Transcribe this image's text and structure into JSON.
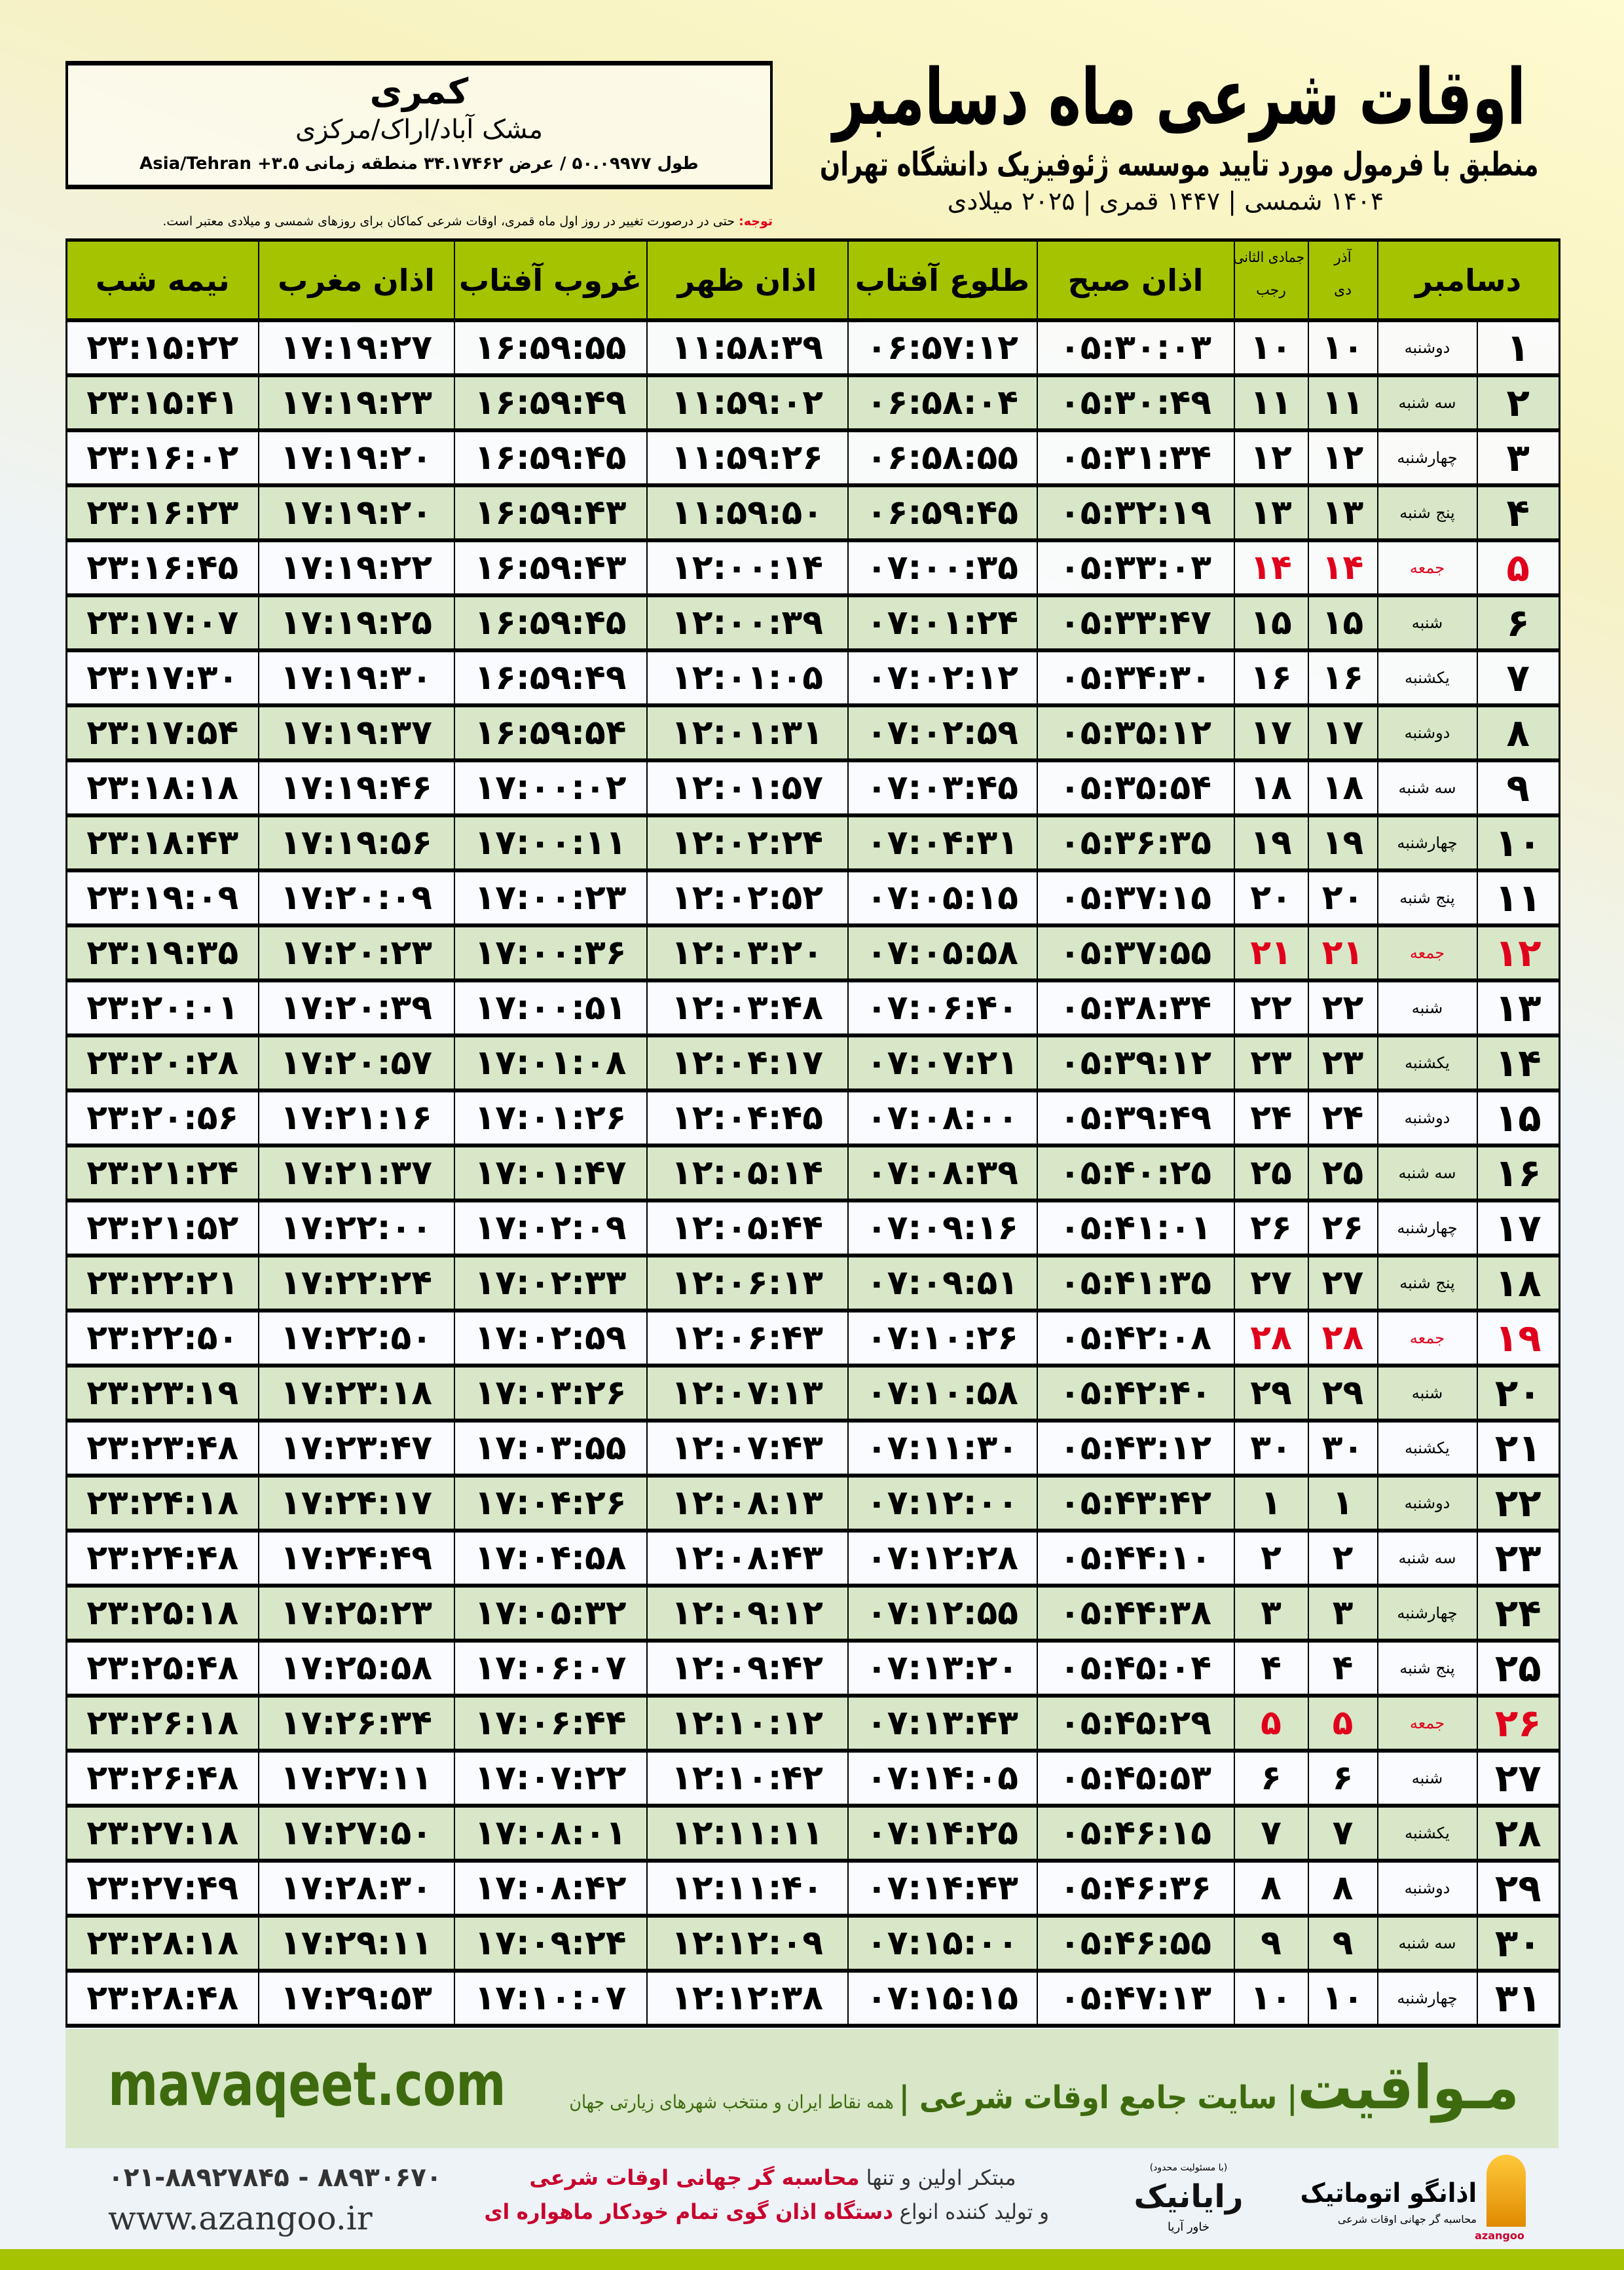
{
  "header": {
    "title": "اوقات شرعی ماه دسامبر",
    "subtitle": "منطبق با فرمول مورد تایید موسسه ژئوفیزیک دانشگاه تهران",
    "dateline": "۱۴۰۴ شمسی | ۱۴۴۷ قمری | ۲۰۲۵ میلادی"
  },
  "location": {
    "city": "کمری",
    "region": "مشک آباد/اراک/مرکزی",
    "coords": "طول ۵۰.۰۹۹۷۷ / عرض ۳۴.۱۷۴۶۲ منطقه زمانی ۳.۵+ Asia/Tehran"
  },
  "note": {
    "label": "توجه:",
    "text": " حتی در درصورت تغییر در روز اول ماه قمری، اوقات شرعی کماکان برای روزهای شمسی و میلادی معتبر است."
  },
  "table": {
    "columns": {
      "day": "دسامبر",
      "dey_top": "آذر",
      "dey": "دی",
      "rajab_top": "جمادی الثانی",
      "rajab": "رجب",
      "sobh": "اذان صبح",
      "tolu": "طلوع آفتاب",
      "zohr": "اذان ظهر",
      "ghoroob": "غروب آفتاب",
      "maghreb": "اذان مغرب",
      "nimeh": "نیمه شب"
    },
    "holiday_color": "#e0001b",
    "rows": [
      [
        "۱",
        "دوشنبه",
        "۱۰",
        "۱۰",
        "۰۵:۳۰:۰۳",
        "۰۶:۵۷:۱۲",
        "۱۱:۵۸:۳۹",
        "۱۶:۵۹:۵۵",
        "۱۷:۱۹:۲۷",
        "۲۳:۱۵:۲۲"
      ],
      [
        "۲",
        "سه شنبه",
        "۱۱",
        "۱۱",
        "۰۵:۳۰:۴۹",
        "۰۶:۵۸:۰۴",
        "۱۱:۵۹:۰۲",
        "۱۶:۵۹:۴۹",
        "۱۷:۱۹:۲۳",
        "۲۳:۱۵:۴۱"
      ],
      [
        "۳",
        "چهارشنبه",
        "۱۲",
        "۱۲",
        "۰۵:۳۱:۳۴",
        "۰۶:۵۸:۵۵",
        "۱۱:۵۹:۲۶",
        "۱۶:۵۹:۴۵",
        "۱۷:۱۹:۲۰",
        "۲۳:۱۶:۰۲"
      ],
      [
        "۴",
        "پنج شنبه",
        "۱۳",
        "۱۳",
        "۰۵:۳۲:۱۹",
        "۰۶:۵۹:۴۵",
        "۱۱:۵۹:۵۰",
        "۱۶:۵۹:۴۳",
        "۱۷:۱۹:۲۰",
        "۲۳:۱۶:۲۳"
      ],
      [
        "۵",
        "جمعه",
        "۱۴",
        "۱۴",
        "۰۵:۳۳:۰۳",
        "۰۷:۰۰:۳۵",
        "۱۲:۰۰:۱۴",
        "۱۶:۵۹:۴۳",
        "۱۷:۱۹:۲۲",
        "۲۳:۱۶:۴۵"
      ],
      [
        "۶",
        "شنبه",
        "۱۵",
        "۱۵",
        "۰۵:۳۳:۴۷",
        "۰۷:۰۱:۲۴",
        "۱۲:۰۰:۳۹",
        "۱۶:۵۹:۴۵",
        "۱۷:۱۹:۲۵",
        "۲۳:۱۷:۰۷"
      ],
      [
        "۷",
        "یکشنبه",
        "۱۶",
        "۱۶",
        "۰۵:۳۴:۳۰",
        "۰۷:۰۲:۱۲",
        "۱۲:۰۱:۰۵",
        "۱۶:۵۹:۴۹",
        "۱۷:۱۹:۳۰",
        "۲۳:۱۷:۳۰"
      ],
      [
        "۸",
        "دوشنبه",
        "۱۷",
        "۱۷",
        "۰۵:۳۵:۱۲",
        "۰۷:۰۲:۵۹",
        "۱۲:۰۱:۳۱",
        "۱۶:۵۹:۵۴",
        "۱۷:۱۹:۳۷",
        "۲۳:۱۷:۵۴"
      ],
      [
        "۹",
        "سه شنبه",
        "۱۸",
        "۱۸",
        "۰۵:۳۵:۵۴",
        "۰۷:۰۳:۴۵",
        "۱۲:۰۱:۵۷",
        "۱۷:۰۰:۰۲",
        "۱۷:۱۹:۴۶",
        "۲۳:۱۸:۱۸"
      ],
      [
        "۱۰",
        "چهارشنبه",
        "۱۹",
        "۱۹",
        "۰۵:۳۶:۳۵",
        "۰۷:۰۴:۳۱",
        "۱۲:۰۲:۲۴",
        "۱۷:۰۰:۱۱",
        "۱۷:۱۹:۵۶",
        "۲۳:۱۸:۴۳"
      ],
      [
        "۱۱",
        "پنج شنبه",
        "۲۰",
        "۲۰",
        "۰۵:۳۷:۱۵",
        "۰۷:۰۵:۱۵",
        "۱۲:۰۲:۵۲",
        "۱۷:۰۰:۲۳",
        "۱۷:۲۰:۰۹",
        "۲۳:۱۹:۰۹"
      ],
      [
        "۱۲",
        "جمعه",
        "۲۱",
        "۲۱",
        "۰۵:۳۷:۵۵",
        "۰۷:۰۵:۵۸",
        "۱۲:۰۳:۲۰",
        "۱۷:۰۰:۳۶",
        "۱۷:۲۰:۲۳",
        "۲۳:۱۹:۳۵"
      ],
      [
        "۱۳",
        "شنبه",
        "۲۲",
        "۲۲",
        "۰۵:۳۸:۳۴",
        "۰۷:۰۶:۴۰",
        "۱۲:۰۳:۴۸",
        "۱۷:۰۰:۵۱",
        "۱۷:۲۰:۳۹",
        "۲۳:۲۰:۰۱"
      ],
      [
        "۱۴",
        "یکشنبه",
        "۲۳",
        "۲۳",
        "۰۵:۳۹:۱۲",
        "۰۷:۰۷:۲۱",
        "۱۲:۰۴:۱۷",
        "۱۷:۰۱:۰۸",
        "۱۷:۲۰:۵۷",
        "۲۳:۲۰:۲۸"
      ],
      [
        "۱۵",
        "دوشنبه",
        "۲۴",
        "۲۴",
        "۰۵:۳۹:۴۹",
        "۰۷:۰۸:۰۰",
        "۱۲:۰۴:۴۵",
        "۱۷:۰۱:۲۶",
        "۱۷:۲۱:۱۶",
        "۲۳:۲۰:۵۶"
      ],
      [
        "۱۶",
        "سه شنبه",
        "۲۵",
        "۲۵",
        "۰۵:۴۰:۲۵",
        "۰۷:۰۸:۳۹",
        "۱۲:۰۵:۱۴",
        "۱۷:۰۱:۴۷",
        "۱۷:۲۱:۳۷",
        "۲۳:۲۱:۲۴"
      ],
      [
        "۱۷",
        "چهارشنبه",
        "۲۶",
        "۲۶",
        "۰۵:۴۱:۰۱",
        "۰۷:۰۹:۱۶",
        "۱۲:۰۵:۴۴",
        "۱۷:۰۲:۰۹",
        "۱۷:۲۲:۰۰",
        "۲۳:۲۱:۵۲"
      ],
      [
        "۱۸",
        "پنج شنبه",
        "۲۷",
        "۲۷",
        "۰۵:۴۱:۳۵",
        "۰۷:۰۹:۵۱",
        "۱۲:۰۶:۱۳",
        "۱۷:۰۲:۳۳",
        "۱۷:۲۲:۲۴",
        "۲۳:۲۲:۲۱"
      ],
      [
        "۱۹",
        "جمعه",
        "۲۸",
        "۲۸",
        "۰۵:۴۲:۰۸",
        "۰۷:۱۰:۲۶",
        "۱۲:۰۶:۴۳",
        "۱۷:۰۲:۵۹",
        "۱۷:۲۲:۵۰",
        "۲۳:۲۲:۵۰"
      ],
      [
        "۲۰",
        "شنبه",
        "۲۹",
        "۲۹",
        "۰۵:۴۲:۴۰",
        "۰۷:۱۰:۵۸",
        "۱۲:۰۷:۱۳",
        "۱۷:۰۳:۲۶",
        "۱۷:۲۳:۱۸",
        "۲۳:۲۳:۱۹"
      ],
      [
        "۲۱",
        "یکشنبه",
        "۳۰",
        "۳۰",
        "۰۵:۴۳:۱۲",
        "۰۷:۱۱:۳۰",
        "۱۲:۰۷:۴۳",
        "۱۷:۰۳:۵۵",
        "۱۷:۲۳:۴۷",
        "۲۳:۲۳:۴۸"
      ],
      [
        "۲۲",
        "دوشنبه",
        "۱",
        "۱",
        "۰۵:۴۳:۴۲",
        "۰۷:۱۲:۰۰",
        "۱۲:۰۸:۱۳",
        "۱۷:۰۴:۲۶",
        "۱۷:۲۴:۱۷",
        "۲۳:۲۴:۱۸"
      ],
      [
        "۲۳",
        "سه شنبه",
        "۲",
        "۲",
        "۰۵:۴۴:۱۰",
        "۰۷:۱۲:۲۸",
        "۱۲:۰۸:۴۳",
        "۱۷:۰۴:۵۸",
        "۱۷:۲۴:۴۹",
        "۲۳:۲۴:۴۸"
      ],
      [
        "۲۴",
        "چهارشنبه",
        "۳",
        "۳",
        "۰۵:۴۴:۳۸",
        "۰۷:۱۲:۵۵",
        "۱۲:۰۹:۱۲",
        "۱۷:۰۵:۳۲",
        "۱۷:۲۵:۲۳",
        "۲۳:۲۵:۱۸"
      ],
      [
        "۲۵",
        "پنج شنبه",
        "۴",
        "۴",
        "۰۵:۴۵:۰۴",
        "۰۷:۱۳:۲۰",
        "۱۲:۰۹:۴۲",
        "۱۷:۰۶:۰۷",
        "۱۷:۲۵:۵۸",
        "۲۳:۲۵:۴۸"
      ],
      [
        "۲۶",
        "جمعه",
        "۵",
        "۵",
        "۰۵:۴۵:۲۹",
        "۰۷:۱۳:۴۳",
        "۱۲:۱۰:۱۲",
        "۱۷:۰۶:۴۴",
        "۱۷:۲۶:۳۴",
        "۲۳:۲۶:۱۸"
      ],
      [
        "۲۷",
        "شنبه",
        "۶",
        "۶",
        "۰۵:۴۵:۵۳",
        "۰۷:۱۴:۰۵",
        "۱۲:۱۰:۴۲",
        "۱۷:۰۷:۲۲",
        "۱۷:۲۷:۱۱",
        "۲۳:۲۶:۴۸"
      ],
      [
        "۲۸",
        "یکشنبه",
        "۷",
        "۷",
        "۰۵:۴۶:۱۵",
        "۰۷:۱۴:۲۵",
        "۱۲:۱۱:۱۱",
        "۱۷:۰۸:۰۱",
        "۱۷:۲۷:۵۰",
        "۲۳:۲۷:۱۸"
      ],
      [
        "۲۹",
        "دوشنبه",
        "۸",
        "۸",
        "۰۵:۴۶:۳۶",
        "۰۷:۱۴:۴۳",
        "۱۲:۱۱:۴۰",
        "۱۷:۰۸:۴۲",
        "۱۷:۲۸:۳۰",
        "۲۳:۲۷:۴۹"
      ],
      [
        "۳۰",
        "سه شنبه",
        "۹",
        "۹",
        "۰۵:۴۶:۵۵",
        "۰۷:۱۵:۰۰",
        "۱۲:۱۲:۰۹",
        "۱۷:۰۹:۲۴",
        "۱۷:۲۹:۱۱",
        "۲۳:۲۸:۱۸"
      ],
      [
        "۳۱",
        "چهارشنبه",
        "۱۰",
        "۱۰",
        "۰۵:۴۷:۱۳",
        "۰۷:۱۵:۱۵",
        "۱۲:۱۲:۳۸",
        "۱۷:۱۰:۰۷",
        "۱۷:۲۹:۵۳",
        "۲۳:۲۸:۴۸"
      ]
    ]
  },
  "footer": {
    "site": "mavaqeet.com",
    "brand": "مـواقیت",
    "slogan_main": "| سایت جامع اوقات شرعی |",
    "slogan_minor": " همه نقاط ایران و منتخب شهرهای زیارتی جهان",
    "phone": "۰۲۱-۸۸۹۲۷۸۴۵ - ۸۸۹۳۰۶۷۰",
    "web": "www.azangoo.ir",
    "promo_1a": "مبتکر اولین و تنها ",
    "promo_1b": "محاسبه گر جهانی اوقات شرعی",
    "promo_2a": "و تولید کننده انواع ",
    "promo_2b": "دستگاه اذان گوی تمام خودکار ماهواره ای",
    "rayanik_small": "(با مسئولیت محدود)",
    "rayanik_name": "رایانیک",
    "rayanik_sub": "خاور آریا",
    "azangoo_name": "اذانگو اتوماتیک",
    "azangoo_tag": "محاسبه گر جهانی اوقات شرعی",
    "azangoo_latin": "azangoo",
    "accent": "#a6c300",
    "brand_green": "#3d6a0e"
  }
}
